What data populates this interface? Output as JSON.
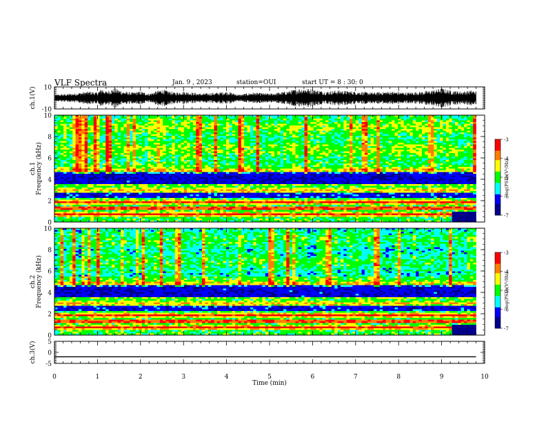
{
  "header": {
    "title": "VLF Spectra",
    "date": "Jan. 9 , 2023",
    "station": "station=OUI",
    "start": "start UT = 8 : 30: 0"
  },
  "colors": {
    "frame": "#000000",
    "scale": [
      "#00008b",
      "#0000ff",
      "#00ffff",
      "#00ff00",
      "#ffff00",
      "#ff7f00",
      "#ff0000",
      "#ffffff"
    ]
  },
  "chart_data": [
    {
      "type": "line",
      "panel": "waveform-ch1",
      "ylabel": "ch.1(V)",
      "ylim": [
        -10,
        10
      ],
      "yticks": [
        "10",
        "-10"
      ],
      "xlim": [
        0,
        10
      ],
      "envelope": {
        "x": [
          0.0,
          0.2,
          0.4,
          0.6,
          0.8,
          1.0,
          1.1,
          1.2,
          1.4,
          1.6,
          1.8,
          2.0,
          2.2,
          2.5,
          2.8,
          3.0,
          3.4,
          3.8,
          4.0,
          4.3,
          4.6,
          5.0,
          5.4,
          5.6,
          5.8,
          6.0,
          6.3,
          6.6,
          7.0,
          7.4,
          7.8,
          8.2,
          8.6,
          8.9,
          9.0,
          9.2,
          9.5,
          9.7,
          9.8
        ],
        "amplitude": [
          3,
          3.5,
          4,
          5,
          6,
          5,
          9,
          6,
          9,
          6,
          5,
          6,
          4,
          8,
          5,
          6,
          4,
          5,
          6,
          3,
          5,
          4,
          6,
          8,
          9,
          8,
          6,
          7,
          6,
          5,
          6,
          5,
          6,
          8,
          9,
          7,
          6,
          7,
          6
        ]
      }
    },
    {
      "type": "heatmap",
      "panel": "spectrogram-ch1",
      "ylabel": "ch.1 Frequency (kHz)",
      "ylim": [
        0,
        10
      ],
      "yticks": [
        "0",
        "2",
        "4",
        "6",
        "8",
        "10"
      ],
      "xlim": [
        0,
        10
      ],
      "colorbar": {
        "label": "log(PSD)(V²/Hz)",
        "range": [
          -7,
          -3
        ],
        "ticks": [
          "-3",
          "-4",
          "-5",
          "-6",
          "-7"
        ]
      }
    },
    {
      "type": "heatmap",
      "panel": "spectrogram-ch2",
      "ylabel": "ch.2 Frequency (kHz)",
      "ylim": [
        0,
        10
      ],
      "yticks": [
        "0",
        "2",
        "4",
        "6",
        "8",
        "10"
      ],
      "xlim": [
        0,
        10
      ],
      "colorbar": {
        "label": "log(PSD)(V²/Hz)",
        "range": [
          -7,
          -3
        ],
        "ticks": [
          "-3",
          "-4",
          "-5",
          "-6",
          "-7"
        ]
      }
    },
    {
      "type": "line",
      "panel": "waveform-ch3",
      "ylabel": "ch.3(V)",
      "ylim": [
        -5,
        5
      ],
      "yticks": [
        "5",
        "0",
        "-5"
      ],
      "xlim": [
        0,
        10
      ],
      "x": [
        0,
        9.8
      ],
      "y": [
        -2,
        -2
      ]
    }
  ],
  "xaxis": {
    "label": "Time (min)",
    "ticks": [
      "0",
      "1",
      "2",
      "3",
      "4",
      "5",
      "6",
      "7",
      "8",
      "9",
      "10"
    ]
  }
}
